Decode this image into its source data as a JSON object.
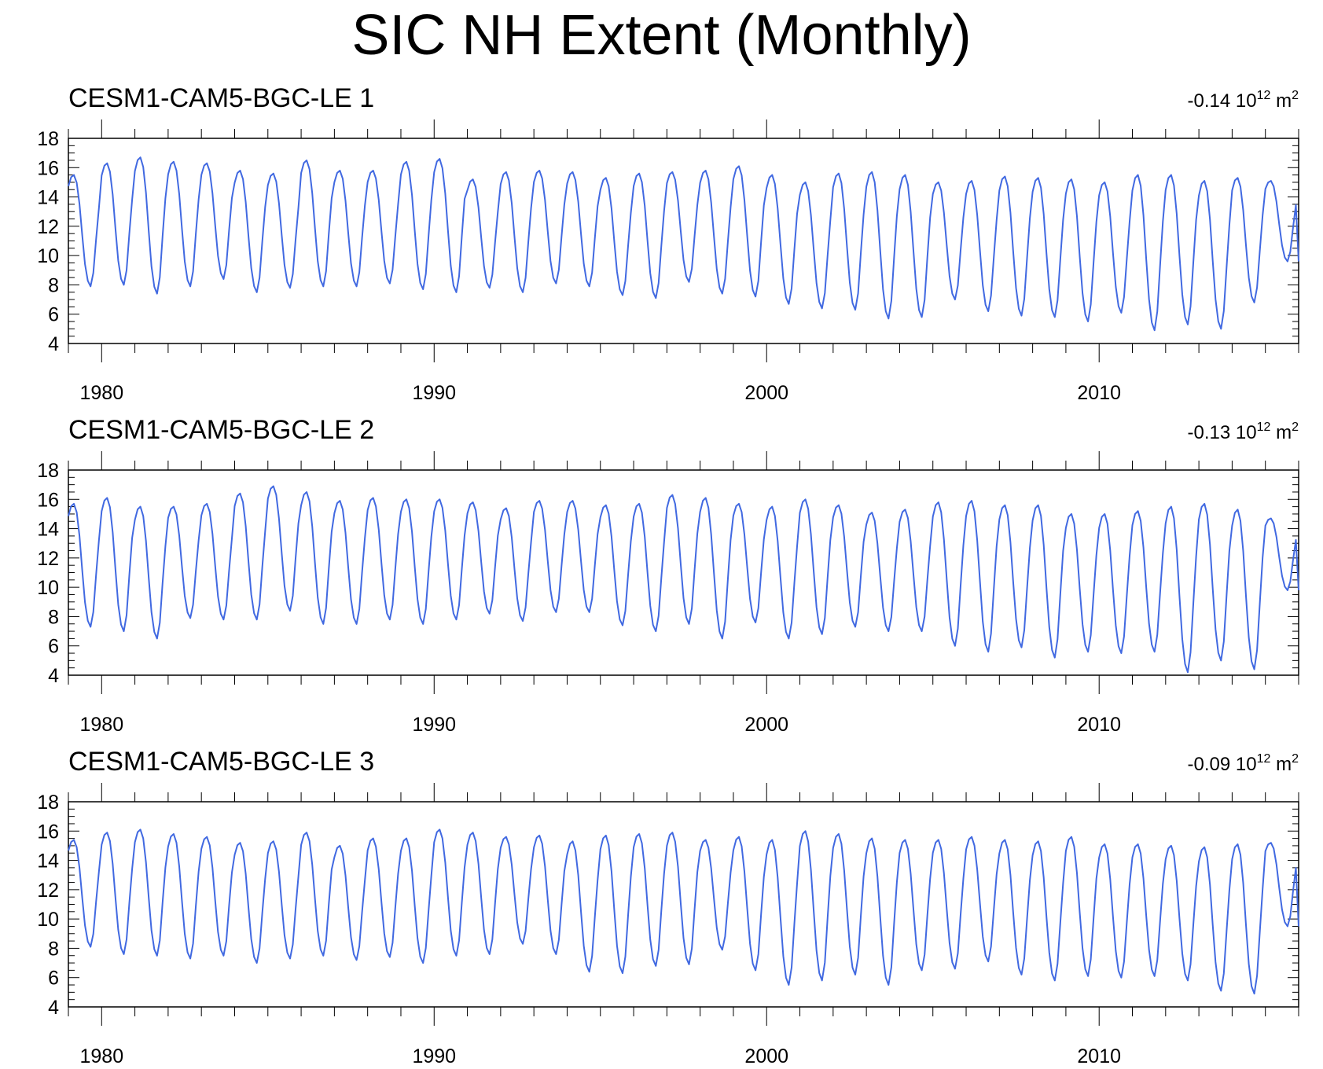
{
  "title": "SIC NH Extent (Monthly)",
  "colors": {
    "line": "#4169e1",
    "axis": "#000000",
    "background": "#ffffff"
  },
  "chart_data": [
    {
      "type": "line",
      "panel_title": "CESM1-CAM5-BGC-LE 1",
      "trend_value": "-0.14",
      "trend_unit": "10",
      "trend_exp": "12",
      "trend_unit2": "m",
      "trend_exp2": "2",
      "series_name": "SIC NH Extent",
      "x_start": 1979.0,
      "x_step": 0.0833333,
      "xlim": [
        1979.0,
        2016.0
      ],
      "ylim": [
        4,
        18
      ],
      "xticks": [
        1980,
        1990,
        2000,
        2010
      ],
      "yticks": [
        4,
        6,
        8,
        10,
        12,
        14,
        16,
        18
      ],
      "annual_max": [
        15.5,
        16.3,
        16.7,
        16.4,
        16.3,
        15.8,
        15.6,
        16.5,
        15.8,
        15.8,
        16.4,
        16.6,
        15.2,
        15.7,
        15.8,
        15.7,
        15.3,
        15.6,
        15.7,
        15.8,
        16.1,
        15.5,
        15.0,
        15.6,
        15.7,
        15.5,
        15.0,
        15.1,
        15.4,
        15.3,
        15.2,
        15.0,
        15.5,
        15.5,
        15.1,
        15.3,
        15.1
      ],
      "annual_min": [
        7.9,
        8.0,
        7.4,
        7.9,
        8.4,
        7.5,
        7.8,
        7.9,
        7.9,
        8.1,
        7.7,
        7.5,
        7.8,
        7.5,
        8.1,
        7.9,
        7.3,
        7.1,
        8.2,
        7.4,
        7.2,
        6.7,
        6.4,
        6.3,
        5.7,
        5.8,
        7.0,
        6.2,
        5.9,
        5.8,
        5.5,
        6.1,
        4.9,
        5.3,
        5.0,
        6.8,
        9.6
      ]
    },
    {
      "type": "line",
      "panel_title": "CESM1-CAM5-BGC-LE 2",
      "trend_value": "-0.13",
      "trend_unit": "10",
      "trend_exp": "12",
      "trend_unit2": "m",
      "trend_exp2": "2",
      "series_name": "SIC NH Extent",
      "x_start": 1979.0,
      "x_step": 0.0833333,
      "xlim": [
        1979.0,
        2016.0
      ],
      "ylim": [
        4,
        18
      ],
      "xticks": [
        1980,
        1990,
        2000,
        2010
      ],
      "yticks": [
        4,
        6,
        8,
        10,
        12,
        14,
        16,
        18
      ],
      "annual_max": [
        15.7,
        16.1,
        15.5,
        15.5,
        15.7,
        16.4,
        16.9,
        16.5,
        15.9,
        16.1,
        16.0,
        16.0,
        15.8,
        15.4,
        15.9,
        15.9,
        15.6,
        15.7,
        16.3,
        16.1,
        15.7,
        15.5,
        16.0,
        15.6,
        15.1,
        15.3,
        15.8,
        15.9,
        15.6,
        15.6,
        15.0,
        15.0,
        15.2,
        15.5,
        15.7,
        15.3,
        14.7
      ],
      "annual_min": [
        7.3,
        7.0,
        6.5,
        7.9,
        7.8,
        7.8,
        8.4,
        7.5,
        7.5,
        7.8,
        7.5,
        7.8,
        8.2,
        7.7,
        8.3,
        8.3,
        7.4,
        7.0,
        7.5,
        6.5,
        7.6,
        6.5,
        6.8,
        7.3,
        7.0,
        7.0,
        6.0,
        5.6,
        5.9,
        5.2,
        5.6,
        5.5,
        5.6,
        4.2,
        5.0,
        4.4,
        9.8
      ]
    },
    {
      "type": "line",
      "panel_title": "CESM1-CAM5-BGC-LE 3",
      "trend_value": "-0.09",
      "trend_unit": "10",
      "trend_exp": "12",
      "trend_unit2": "m",
      "trend_exp2": "2",
      "series_name": "SIC NH Extent",
      "x_start": 1979.0,
      "x_step": 0.0833333,
      "xlim": [
        1979.0,
        2016.0
      ],
      "ylim": [
        4,
        18
      ],
      "xticks": [
        1980,
        1990,
        2000,
        2010
      ],
      "yticks": [
        4,
        6,
        8,
        10,
        12,
        14,
        16,
        18
      ],
      "annual_max": [
        15.4,
        15.9,
        16.1,
        15.8,
        15.6,
        15.2,
        15.3,
        15.9,
        15.0,
        15.5,
        15.5,
        16.1,
        15.9,
        15.6,
        15.7,
        15.3,
        15.7,
        15.8,
        15.9,
        15.4,
        15.6,
        15.4,
        16.0,
        15.8,
        15.5,
        15.4,
        15.4,
        15.6,
        15.4,
        15.3,
        15.6,
        15.1,
        15.1,
        15.0,
        14.9,
        15.1,
        15.2
      ],
      "annual_min": [
        8.1,
        7.6,
        7.5,
        7.3,
        7.5,
        7.0,
        7.3,
        7.5,
        7.2,
        7.4,
        7.0,
        7.5,
        7.6,
        8.3,
        7.6,
        6.4,
        6.3,
        6.8,
        6.9,
        7.9,
        6.5,
        5.5,
        5.8,
        6.2,
        5.5,
        6.5,
        6.6,
        7.1,
        6.2,
        5.8,
        6.1,
        6.0,
        6.1,
        5.8,
        5.1,
        4.9,
        9.5
      ]
    }
  ]
}
